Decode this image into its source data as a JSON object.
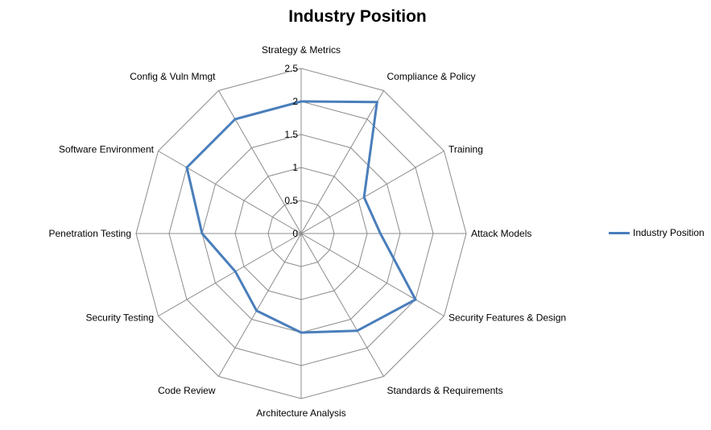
{
  "chart_data": {
    "type": "radar",
    "title": "Industry Position",
    "categories": [
      "Strategy & Metrics",
      "Compliance & Policy",
      "Training",
      "Attack Models",
      "Security Features & Design",
      "Standards & Requirements",
      "Architecture Analysis",
      "Code Review",
      "Security Testing",
      "Penetration Testing",
      "Software Environment",
      "Config & Vuln Mmgt"
    ],
    "series": [
      {
        "name": "Industry Position",
        "color": "#4a7ebb",
        "values": [
          2.0,
          2.3,
          1.1,
          1.2,
          2.0,
          1.7,
          1.5,
          1.35,
          1.15,
          1.5,
          2.0,
          2.0
        ]
      }
    ],
    "rlim": [
      0,
      2.5
    ],
    "ticks": [
      "0",
      "0.5",
      "1",
      "1.5",
      "2",
      "2.5"
    ],
    "grid": true,
    "legend_position": "right"
  }
}
